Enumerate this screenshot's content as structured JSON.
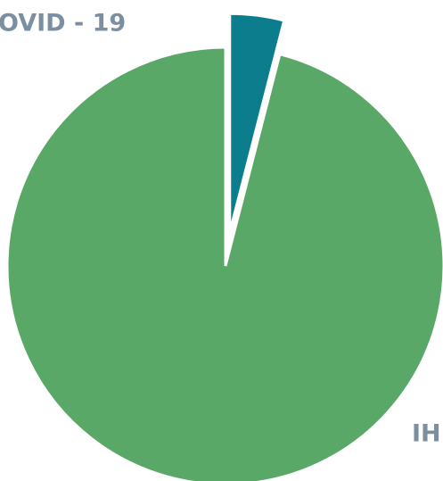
{
  "chart_data": {
    "type": "pie",
    "categories": [
      "OVID - 19",
      "IHL"
    ],
    "values": [
      4,
      96
    ],
    "colors": [
      "#0b7d8c",
      "#5aa868"
    ],
    "explode": [
      true,
      false
    ]
  }
}
